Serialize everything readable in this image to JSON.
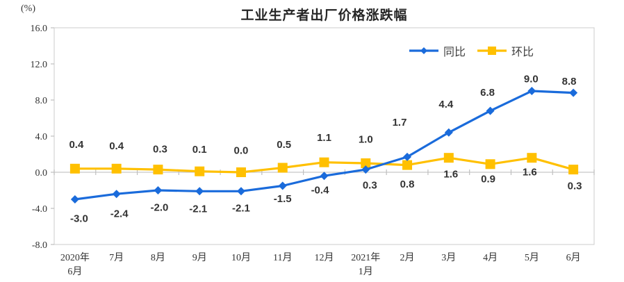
{
  "chart_data": {
    "type": "line",
    "title": "工业生产者出厂价格涨跌幅",
    "unit_label": "(%)",
    "categories": [
      [
        "2020年",
        "6月"
      ],
      [
        "7月"
      ],
      [
        "8月"
      ],
      [
        "9月"
      ],
      [
        "10月"
      ],
      [
        "11月"
      ],
      [
        "12月"
      ],
      [
        "2021年",
        "1月"
      ],
      [
        "2月"
      ],
      [
        "3月"
      ],
      [
        "4月"
      ],
      [
        "5月"
      ],
      [
        "6月"
      ]
    ],
    "ylim": [
      -8,
      16
    ],
    "ytick_step": 4,
    "grid": "zero-line-only",
    "legend_position": "top-right-inside",
    "xlabel": "",
    "ylabel": "(%)",
    "series": [
      {
        "name": "同比",
        "color": "#1A6BDB",
        "marker": "diamond",
        "values": [
          -3.0,
          -2.4,
          -2.0,
          -2.1,
          -2.1,
          -1.5,
          -0.4,
          0.3,
          1.7,
          4.4,
          6.8,
          9.0,
          8.8
        ],
        "label_dx": [
          6,
          4,
          2,
          -2,
          0,
          0,
          -6,
          6,
          -11,
          -4,
          -4,
          -1,
          -6
        ],
        "label_dy": [
          27,
          28,
          24,
          25,
          24,
          18,
          20,
          22,
          -50,
          -41,
          -27,
          -18,
          -17
        ]
      },
      {
        "name": "环比",
        "color": "#FFC000",
        "marker": "square",
        "values": [
          0.4,
          0.4,
          0.3,
          0.1,
          0.0,
          0.5,
          1.1,
          1.0,
          0.8,
          1.6,
          0.9,
          1.6,
          0.3
        ],
        "label_dx": [
          2,
          0,
          3,
          0,
          0,
          2,
          0,
          0,
          0,
          3,
          -3,
          -3,
          2
        ],
        "label_dy": [
          -35,
          -33,
          -30,
          -32,
          -32,
          -34,
          -36,
          -35,
          27,
          23,
          21,
          20,
          23
        ]
      }
    ],
    "colors": {
      "plot_border": "#D4D4D4",
      "zero_line": "#C8C8C8",
      "tick": "#BFBFBF",
      "title_text": "#262626",
      "axis_text": "#333333",
      "label_text": "#333333"
    }
  }
}
